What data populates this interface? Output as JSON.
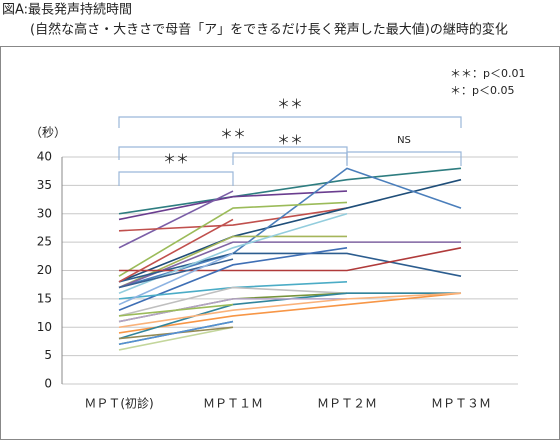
{
  "chart_data": {
    "type": "line",
    "title": "図A:最長発声持続時間",
    "subtitle": "(自然な高さ・大きさで母音「ア」をできるだけ長く発声した最大値)の継時的変化",
    "y_label": "（秒）",
    "categories": [
      "ＭＰＴ(初診)",
      "ＭＰＴ１Ｍ",
      "ＭＰＴ２Ｍ",
      "ＭＰＴ３Ｍ"
    ],
    "ylim": [
      0,
      40
    ],
    "yticks": [
      0,
      5,
      10,
      15,
      20,
      25,
      30,
      35,
      40
    ],
    "grid": true,
    "annotations": [
      "＊＊",
      "＊＊",
      "＊＊",
      "＊＊",
      "NS"
    ],
    "significance_legend": [
      "＊＊：p＜0.01",
      "＊：p＜0.05"
    ],
    "series": [
      {
        "color": "#2e7d80",
        "values": [
          30,
          33,
          36,
          38
        ]
      },
      {
        "color": "#6a3d8f",
        "values": [
          29,
          33,
          34,
          null
        ]
      },
      {
        "color": "#7b5ea7",
        "values": [
          24,
          34,
          null,
          null
        ]
      },
      {
        "color": "#c0504d",
        "values": [
          27,
          28,
          31,
          null
        ]
      },
      {
        "color": "#1f4e79",
        "values": [
          18,
          26,
          31,
          36
        ]
      },
      {
        "color": "#4a7ebb",
        "values": [
          17,
          23,
          38,
          31
        ]
      },
      {
        "color": "#9bbb59",
        "values": [
          19,
          31,
          32,
          null
        ]
      },
      {
        "color": "#a5b55a",
        "values": [
          17,
          26,
          26,
          null
        ]
      },
      {
        "color": "#8064a2",
        "values": [
          17,
          25,
          25,
          25
        ]
      },
      {
        "color": "#2c5d8f",
        "values": [
          18,
          23,
          23,
          19
        ]
      },
      {
        "color": "#b03a3a",
        "values": [
          20,
          20,
          20,
          24
        ]
      },
      {
        "color": "#c0504d",
        "values": [
          18,
          29,
          null,
          null
        ]
      },
      {
        "color": "#93cddd",
        "values": [
          16,
          24,
          30,
          null
        ]
      },
      {
        "color": "#3f6fb5",
        "values": [
          13,
          21,
          24,
          null
        ]
      },
      {
        "color": "#4bacc6",
        "values": [
          15,
          17,
          18,
          null
        ]
      },
      {
        "color": "#f79646",
        "values": [
          9,
          12,
          14,
          16
        ]
      },
      {
        "color": "#bfbfbf",
        "values": [
          12,
          17,
          16,
          16
        ]
      },
      {
        "color": "#77933c",
        "values": [
          11,
          15,
          16,
          null
        ]
      },
      {
        "color": "#31859c",
        "values": [
          8,
          14,
          16,
          16
        ]
      },
      {
        "color": "#b3a2c7",
        "values": [
          11,
          15,
          15,
          null
        ]
      },
      {
        "color": "#fab27a",
        "values": [
          10,
          13,
          15,
          16
        ]
      },
      {
        "color": "#c3d69b",
        "values": [
          6,
          10,
          null,
          null
        ]
      },
      {
        "color": "#4f9a3c",
        "values": [
          7,
          11,
          null,
          null
        ]
      },
      {
        "color": "#948a54",
        "values": [
          8,
          10,
          null,
          null
        ]
      },
      {
        "color": "#558ed5",
        "values": [
          7,
          11,
          null,
          null
        ]
      },
      {
        "color": "#9bbb59",
        "values": [
          12,
          14,
          null,
          null
        ]
      },
      {
        "color": "#376092",
        "values": [
          17,
          22,
          null,
          null
        ]
      },
      {
        "color": "#8db3e2",
        "values": [
          14,
          23,
          null,
          null
        ]
      }
    ]
  }
}
